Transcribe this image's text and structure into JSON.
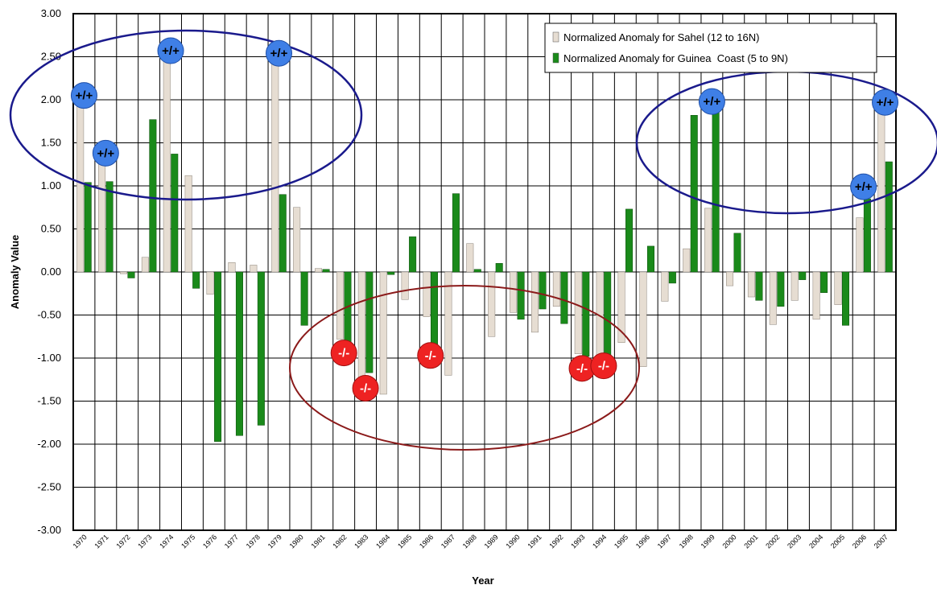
{
  "chart_data": {
    "type": "bar",
    "xlabel": "Year",
    "ylabel": "Anomaly Value",
    "ylim": [
      -3.0,
      3.0
    ],
    "ytick_step": 0.5,
    "grid": true,
    "legend_position": "top-right",
    "categories": [
      "1970",
      "1971",
      "1972",
      "1973",
      "1974",
      "1975",
      "1976",
      "1977",
      "1978",
      "1979",
      "1980",
      "1981",
      "1982",
      "1983",
      "1984",
      "1985",
      "1986",
      "1987",
      "1988",
      "1989",
      "1990",
      "1991",
      "1992",
      "1993",
      "1994",
      "1995",
      "1996",
      "1997",
      "1998",
      "1999",
      "2000",
      "2001",
      "2002",
      "2003",
      "2004",
      "2005",
      "2006",
      "2007"
    ],
    "series": [
      {
        "name": "Normalized Anomaly for Sahel (12 to 16N)",
        "color": "#e6ddd2",
        "values": [
          2.0,
          1.35,
          -0.02,
          0.17,
          2.55,
          1.12,
          -0.26,
          0.11,
          0.08,
          2.52,
          0.75,
          0.04,
          -0.78,
          -1.25,
          -1.42,
          -0.32,
          -0.52,
          -1.2,
          0.33,
          -0.75,
          -0.47,
          -0.7,
          -0.4,
          -0.95,
          -0.98,
          -0.82,
          -1.1,
          -0.34,
          0.27,
          0.74,
          -0.16,
          -0.29,
          -0.61,
          -0.33,
          -0.55,
          -0.38,
          0.63,
          1.95
        ]
      },
      {
        "name": "Normalized Anomaly for Guinea  Coast (5 to 9N)",
        "color": "#1a8a1a",
        "values": [
          1.04,
          1.05,
          -0.07,
          1.77,
          1.37,
          -0.19,
          -1.97,
          -1.9,
          -1.78,
          0.9,
          -0.62,
          0.03,
          -0.9,
          -1.17,
          -0.03,
          0.41,
          -0.98,
          0.91,
          0.03,
          0.1,
          -0.55,
          -0.43,
          -0.6,
          -0.98,
          -0.97,
          0.73,
          0.3,
          -0.13,
          1.82,
          1.95,
          0.45,
          -0.33,
          -0.4,
          -0.09,
          -0.24,
          -0.62,
          0.85,
          1.28
        ]
      }
    ],
    "annotations": {
      "positive_badges": [
        {
          "text": "+/+",
          "year": "1970",
          "value": 2.05
        },
        {
          "text": "+/+",
          "year": "1971",
          "value": 1.38
        },
        {
          "text": "+/+",
          "year": "1974",
          "value": 2.57
        },
        {
          "text": "+/+",
          "year": "1979",
          "value": 2.54
        },
        {
          "text": "+/+",
          "year": "1999",
          "value": 1.98
        },
        {
          "text": "+/+",
          "year": "2006",
          "value": 0.99
        },
        {
          "text": "+/+",
          "year": "2007",
          "value": 1.97
        }
      ],
      "negative_badges": [
        {
          "text": "-/-",
          "year": "1982",
          "value": -0.94
        },
        {
          "text": "-/-",
          "year": "1983",
          "value": -1.35
        },
        {
          "text": "-/-",
          "year": "1986",
          "value": -0.97
        },
        {
          "text": "-/-",
          "year": "1993",
          "value": -1.12
        },
        {
          "text": "-/-",
          "year": "1994",
          "value": -1.09
        }
      ],
      "positive_color": "#3f7fe6",
      "negative_color": "#ee2222",
      "ellipse_blue_color": "#1a1a8c",
      "ellipse_red_color": "#8b1a1a"
    }
  }
}
